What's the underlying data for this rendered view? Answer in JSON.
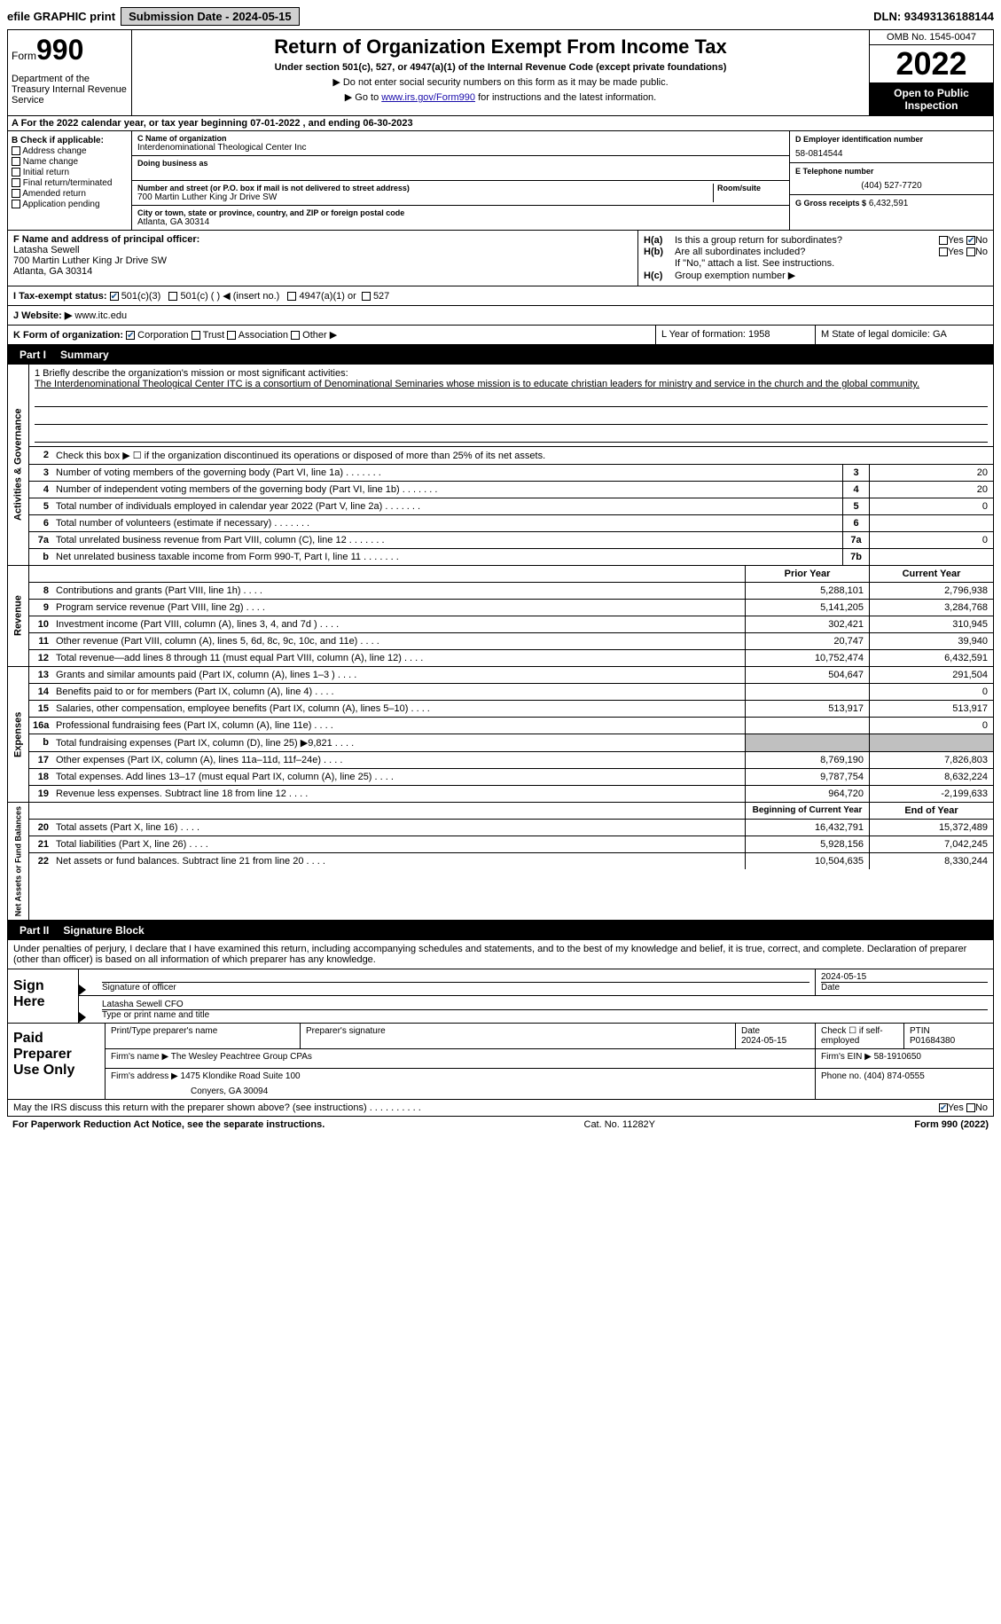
{
  "top": {
    "efile": "efile GRAPHIC print",
    "submission": "Submission Date - 2024-05-15",
    "dln": "DLN: 93493136188144"
  },
  "header": {
    "form_prefix": "Form",
    "form_num": "990",
    "dept": "Department of the Treasury Internal Revenue Service",
    "title": "Return of Organization Exempt From Income Tax",
    "subtitle": "Under section 501(c), 527, or 4947(a)(1) of the Internal Revenue Code (except private foundations)",
    "note1": "▶ Do not enter social security numbers on this form as it may be made public.",
    "note2_pre": "▶ Go to ",
    "note2_link": "www.irs.gov/Form990",
    "note2_post": " for instructions and the latest information.",
    "omb": "OMB No. 1545-0047",
    "year": "2022",
    "open": "Open to Public Inspection"
  },
  "row_a": "A For the 2022 calendar year, or tax year beginning 07-01-2022   , and ending 06-30-2023",
  "col_b": {
    "header": "B Check if applicable:",
    "opts": [
      "Address change",
      "Name change",
      "Initial return",
      "Final return/terminated",
      "Amended return",
      "Application pending"
    ]
  },
  "col_c": {
    "name_label": "C Name of organization",
    "name": "Interdenominational Theological Center Inc",
    "dba_label": "Doing business as",
    "addr_label": "Number and street (or P.O. box if mail is not delivered to street address)",
    "room_label": "Room/suite",
    "addr": "700 Martin Luther King Jr Drive SW",
    "city_label": "City or town, state or province, country, and ZIP or foreign postal code",
    "city": "Atlanta, GA   30314"
  },
  "col_d": {
    "ein_label": "D Employer identification number",
    "ein": "58-0814544",
    "tel_label": "E Telephone number",
    "tel": "(404) 527-7720",
    "gross_label": "G Gross receipts $",
    "gross": "6,432,591"
  },
  "col_f": {
    "label": "F Name and address of principal officer:",
    "name": "Latasha Sewell",
    "addr1": "700 Martin Luther King Jr Drive SW",
    "addr2": "Atlanta, GA   30314"
  },
  "col_h": {
    "ha": "Is this a group return for subordinates?",
    "hb": "Are all subordinates included?",
    "hb_note": "If \"No,\" attach a list. See instructions.",
    "hc": "Group exemption number ▶"
  },
  "row_i": {
    "label": "I   Tax-exempt status:",
    "o1": "501(c)(3)",
    "o2": "501(c) (   ) ◀ (insert no.)",
    "o3": "4947(a)(1) or",
    "o4": "527"
  },
  "row_j": {
    "label": "J   Website: ▶",
    "val": "www.itc.edu"
  },
  "row_k": {
    "label": "K Form of organization:",
    "o1": "Corporation",
    "o2": "Trust",
    "o3": "Association",
    "o4": "Other ▶"
  },
  "row_l": "L Year of formation: 1958",
  "row_m": "M State of legal domicile: GA",
  "part1": {
    "label": "Part I",
    "title": "Summary"
  },
  "mission": {
    "prompt": "1   Briefly describe the organization's mission or most significant activities:",
    "text": "The Interdenominational Theological Center ITC is a consortium of Denominational Seminaries whose mission is to educate christian leaders for ministry and service in the church and the global community."
  },
  "lines_ag": [
    {
      "n": "2",
      "d": "Check this box ▶ ☐  if the organization discontinued its operations or disposed of more than 25% of its net assets."
    },
    {
      "n": "3",
      "d": "Number of voting members of the governing body (Part VI, line 1a)",
      "b": "3",
      "v": "20"
    },
    {
      "n": "4",
      "d": "Number of independent voting members of the governing body (Part VI, line 1b)",
      "b": "4",
      "v": "20"
    },
    {
      "n": "5",
      "d": "Total number of individuals employed in calendar year 2022 (Part V, line 2a)",
      "b": "5",
      "v": "0"
    },
    {
      "n": "6",
      "d": "Total number of volunteers (estimate if necessary)",
      "b": "6",
      "v": ""
    },
    {
      "n": "7a",
      "d": "Total unrelated business revenue from Part VIII, column (C), line 12",
      "b": "7a",
      "v": "0"
    },
    {
      "n": "b",
      "d": "Net unrelated business taxable income from Form 990-T, Part I, line 11",
      "b": "7b",
      "v": ""
    }
  ],
  "yr_header": {
    "prior": "Prior Year",
    "current": "Current Year"
  },
  "revenue": [
    {
      "n": "8",
      "d": "Contributions and grants (Part VIII, line 1h)",
      "p": "5,288,101",
      "c": "2,796,938"
    },
    {
      "n": "9",
      "d": "Program service revenue (Part VIII, line 2g)",
      "p": "5,141,205",
      "c": "3,284,768"
    },
    {
      "n": "10",
      "d": "Investment income (Part VIII, column (A), lines 3, 4, and 7d )",
      "p": "302,421",
      "c": "310,945"
    },
    {
      "n": "11",
      "d": "Other revenue (Part VIII, column (A), lines 5, 6d, 8c, 9c, 10c, and 11e)",
      "p": "20,747",
      "c": "39,940"
    },
    {
      "n": "12",
      "d": "Total revenue—add lines 8 through 11 (must equal Part VIII, column (A), line 12)",
      "p": "10,752,474",
      "c": "6,432,591"
    }
  ],
  "expenses": [
    {
      "n": "13",
      "d": "Grants and similar amounts paid (Part IX, column (A), lines 1–3 )",
      "p": "504,647",
      "c": "291,504"
    },
    {
      "n": "14",
      "d": "Benefits paid to or for members (Part IX, column (A), line 4)",
      "p": "",
      "c": "0"
    },
    {
      "n": "15",
      "d": "Salaries, other compensation, employee benefits (Part IX, column (A), lines 5–10)",
      "p": "513,917",
      "c": "513,917"
    },
    {
      "n": "16a",
      "d": "Professional fundraising fees (Part IX, column (A), line 11e)",
      "p": "",
      "c": "0"
    },
    {
      "n": "b",
      "d": "Total fundraising expenses (Part IX, column (D), line 25) ▶9,821",
      "p": "gray",
      "c": "gray"
    },
    {
      "n": "17",
      "d": "Other expenses (Part IX, column (A), lines 11a–11d, 11f–24e)",
      "p": "8,769,190",
      "c": "7,826,803"
    },
    {
      "n": "18",
      "d": "Total expenses. Add lines 13–17 (must equal Part IX, column (A), line 25)",
      "p": "9,787,754",
      "c": "8,632,224"
    },
    {
      "n": "19",
      "d": "Revenue less expenses. Subtract line 18 from line 12",
      "p": "964,720",
      "c": "-2,199,633"
    }
  ],
  "na_header": {
    "prior": "Beginning of Current Year",
    "current": "End of Year"
  },
  "netassets": [
    {
      "n": "20",
      "d": "Total assets (Part X, line 16)",
      "p": "16,432,791",
      "c": "15,372,489"
    },
    {
      "n": "21",
      "d": "Total liabilities (Part X, line 26)",
      "p": "5,928,156",
      "c": "7,042,245"
    },
    {
      "n": "22",
      "d": "Net assets or fund balances. Subtract line 21 from line 20",
      "p": "10,504,635",
      "c": "8,330,244"
    }
  ],
  "part2": {
    "label": "Part II",
    "title": "Signature Block"
  },
  "sig": {
    "declaration": "Under penalties of perjury, I declare that I have examined this return, including accompanying schedules and statements, and to the best of my knowledge and belief, it is true, correct, and complete. Declaration of preparer (other than officer) is based on all information of which preparer has any knowledge.",
    "sign_here": "Sign Here",
    "sig_label": "Signature of officer",
    "date_label": "Date",
    "date": "2024-05-15",
    "name": "Latasha Sewell CFO",
    "name_label": "Type or print name and title"
  },
  "prep": {
    "title": "Paid Preparer Use Only",
    "r1": {
      "l1": "Print/Type preparer's name",
      "l2": "Preparer's signature",
      "l3": "Date",
      "d": "2024-05-15",
      "l4": "Check ☐ if self-employed",
      "l5": "PTIN",
      "ptin": "P01684380"
    },
    "r2": {
      "l": "Firm's name    ▶",
      "v": "The Wesley Peachtree Group CPAs",
      "l2": "Firm's EIN ▶",
      "ein": "58-1910650"
    },
    "r3": {
      "l": "Firm's address ▶",
      "v": "1475 Klondike Road Suite 100",
      "v2": "Conyers, GA   30094",
      "l2": "Phone no.",
      "ph": "(404) 874-0555"
    }
  },
  "bottom": {
    "q": "May the IRS discuss this return with the preparer shown above? (see instructions)",
    "yes": "Yes",
    "no": "No"
  },
  "footer": {
    "left": "For Paperwork Reduction Act Notice, see the separate instructions.",
    "mid": "Cat. No. 11282Y",
    "right": "Form 990 (2022)"
  },
  "side_labels": {
    "ag": "Activities & Governance",
    "rev": "Revenue",
    "exp": "Expenses",
    "na": "Net Assets or Fund Balances"
  }
}
